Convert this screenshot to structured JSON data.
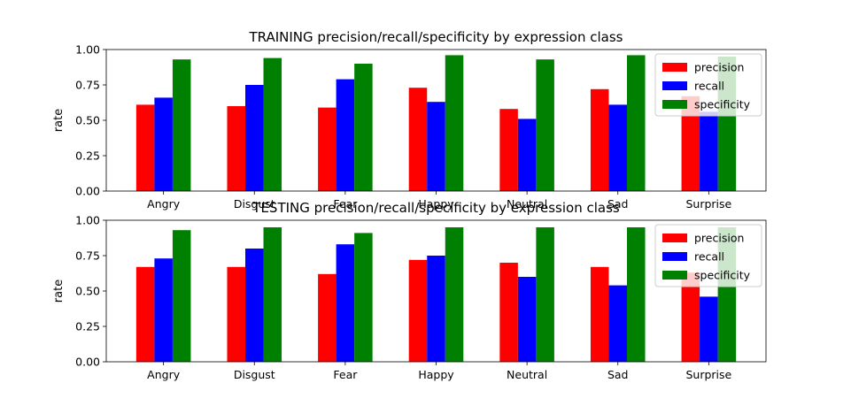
{
  "chart_data": [
    {
      "type": "bar",
      "title": "TRAINING precision/recall/specificity by expression class",
      "xlabel": "",
      "ylabel": "rate",
      "ylim": [
        0,
        1
      ],
      "yticks": [
        "0.00",
        "0.25",
        "0.50",
        "0.75",
        "1.00"
      ],
      "ytick_values": [
        0,
        0.25,
        0.5,
        0.75,
        1.0
      ],
      "grid": false,
      "legend_position": "top-right",
      "categories": [
        "Angry",
        "Disgust",
        "Fear",
        "Happy",
        "Neutral",
        "Sad",
        "Surprise"
      ],
      "series": [
        {
          "name": "precision",
          "color": "#ff0000",
          "values": [
            0.61,
            0.6,
            0.59,
            0.73,
            0.58,
            0.72,
            0.67
          ]
        },
        {
          "name": "recall",
          "color": "#0000ff",
          "values": [
            0.66,
            0.75,
            0.79,
            0.63,
            0.51,
            0.61,
            0.56
          ]
        },
        {
          "name": "specificity",
          "color": "#008000",
          "values": [
            0.93,
            0.94,
            0.9,
            0.96,
            0.93,
            0.96,
            0.95
          ]
        }
      ]
    },
    {
      "type": "bar",
      "title": "TESTING precision/recall/specificity by expression class",
      "xlabel": "",
      "ylabel": "rate",
      "ylim": [
        0,
        1
      ],
      "yticks": [
        "0.00",
        "0.25",
        "0.50",
        "0.75",
        "1.00"
      ],
      "ytick_values": [
        0,
        0.25,
        0.5,
        0.75,
        1.0
      ],
      "grid": false,
      "legend_position": "top-right",
      "categories": [
        "Angry",
        "Disgust",
        "Fear",
        "Happy",
        "Neutral",
        "Sad",
        "Surprise"
      ],
      "series": [
        {
          "name": "precision",
          "color": "#ff0000",
          "values": [
            0.67,
            0.67,
            0.62,
            0.72,
            0.7,
            0.67,
            0.63
          ]
        },
        {
          "name": "recall",
          "color": "#0000ff",
          "values": [
            0.73,
            0.8,
            0.83,
            0.75,
            0.6,
            0.54,
            0.46
          ]
        },
        {
          "name": "specificity",
          "color": "#008000",
          "values": [
            0.93,
            0.95,
            0.91,
            0.95,
            0.95,
            0.95,
            0.95
          ]
        }
      ]
    }
  ]
}
